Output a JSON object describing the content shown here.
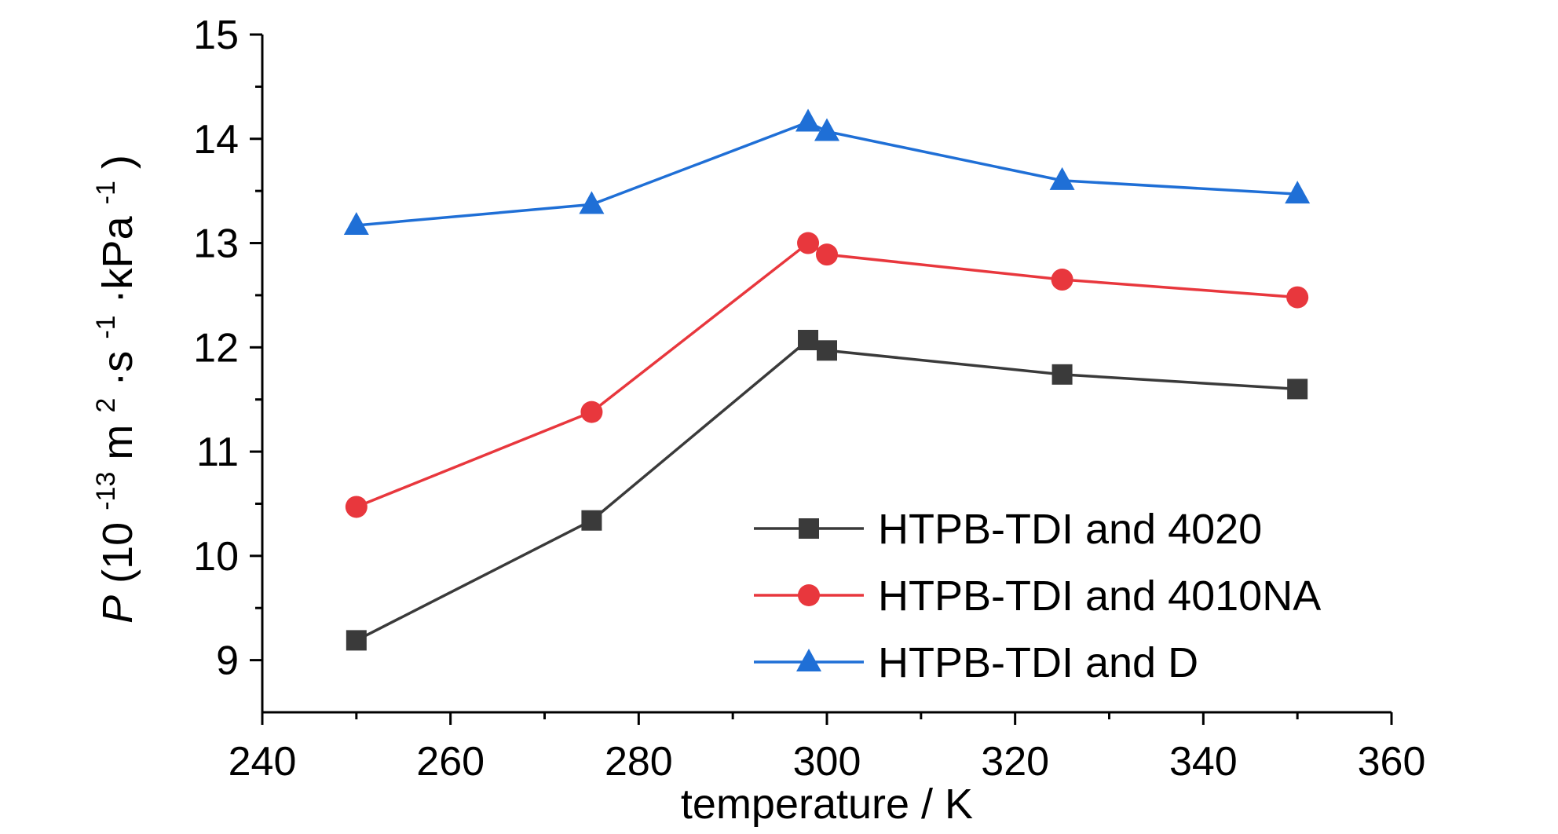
{
  "chart_data": {
    "type": "line",
    "title": "",
    "xlabel": "temperature / K",
    "ylabel": {
      "symbol": "P",
      "open": " (10",
      "exp1": "-13",
      "m": "m",
      "exp2": "2",
      "s": "·s",
      "exp3": "-1",
      "kpa": "·kPa",
      "exp4": "-1",
      "close": ")"
    },
    "xlim": [
      240,
      360
    ],
    "ylim": [
      8.5,
      15
    ],
    "x_ticks": [
      "240",
      "260",
      "280",
      "300",
      "320",
      "340",
      "360"
    ],
    "y_ticks": [
      "9",
      "10",
      "11",
      "12",
      "13",
      "14",
      "15"
    ],
    "grid": false,
    "legend_position": "bottom-right",
    "series": [
      {
        "name": "HTPB-TDI and 4020",
        "color": "#3a3a3a",
        "marker": "square",
        "x": [
          250,
          275,
          298,
          300,
          325,
          350
        ],
        "y": [
          9.19,
          10.34,
          12.07,
          11.97,
          11.74,
          11.6
        ]
      },
      {
        "name": "HTPB-TDI and 4010NA",
        "color": "#e8373d",
        "marker": "circle",
        "x": [
          250,
          275,
          298,
          300,
          325,
          350
        ],
        "y": [
          10.47,
          11.38,
          13.0,
          12.89,
          12.65,
          12.48
        ]
      },
      {
        "name": "HTPB-TDI and D",
        "color": "#1f6fd6",
        "marker": "triangle",
        "x": [
          250,
          275,
          298,
          300,
          325,
          350
        ],
        "y": [
          13.17,
          13.37,
          14.16,
          14.07,
          13.6,
          13.47
        ]
      }
    ]
  }
}
